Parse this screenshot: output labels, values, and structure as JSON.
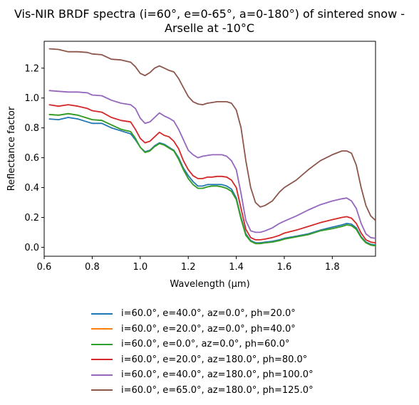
{
  "chart_data": {
    "type": "line",
    "title": "Vis-NIR BRDF spectra (i=60°, e=0-65°, a=0-180°) of sintered snow - Arselle at -10°C",
    "title_lines": [
      "Vis-NIR BRDF spectra (i=60°, e=0-65°, a=0-180°) of sintered snow -",
      "Arselle at -10°C"
    ],
    "xlabel": "Wavelength (μm)",
    "ylabel": "Reflectance factor",
    "xlim": [
      0.6,
      1.98
    ],
    "ylim": [
      -0.06,
      1.38
    ],
    "xticks": [
      0.6,
      0.8,
      1.0,
      1.2,
      1.4,
      1.6,
      1.8
    ],
    "xtick_labels": [
      "0.6",
      "0.8",
      "1.0",
      "1.2",
      "1.4",
      "1.6",
      "1.8"
    ],
    "yticks": [
      0.0,
      0.2,
      0.4,
      0.6,
      0.8,
      1.0,
      1.2
    ],
    "ytick_labels": [
      "0.0",
      "0.2",
      "0.4",
      "0.6",
      "0.8",
      "1.0",
      "1.2"
    ],
    "grid": false,
    "legend_position": "below",
    "x": [
      0.62,
      0.66,
      0.7,
      0.74,
      0.78,
      0.8,
      0.84,
      0.88,
      0.92,
      0.96,
      0.98,
      1.0,
      1.02,
      1.04,
      1.06,
      1.08,
      1.1,
      1.12,
      1.14,
      1.16,
      1.18,
      1.2,
      1.22,
      1.24,
      1.26,
      1.28,
      1.3,
      1.32,
      1.34,
      1.36,
      1.38,
      1.4,
      1.42,
      1.44,
      1.46,
      1.48,
      1.5,
      1.52,
      1.55,
      1.58,
      1.6,
      1.65,
      1.7,
      1.75,
      1.8,
      1.84,
      1.86,
      1.88,
      1.9,
      1.92,
      1.94,
      1.96,
      1.98
    ],
    "series": [
      {
        "name": "i=60.0°, e=40.0°, az=0.0°, ph=20.0°",
        "color": "#1f77b4",
        "values": [
          0.86,
          0.855,
          0.87,
          0.86,
          0.84,
          0.83,
          0.83,
          0.8,
          0.78,
          0.76,
          0.72,
          0.67,
          0.64,
          0.65,
          0.68,
          0.7,
          0.69,
          0.67,
          0.65,
          0.6,
          0.53,
          0.48,
          0.44,
          0.41,
          0.41,
          0.42,
          0.42,
          0.42,
          0.42,
          0.41,
          0.39,
          0.33,
          0.2,
          0.09,
          0.045,
          0.03,
          0.03,
          0.035,
          0.04,
          0.05,
          0.06,
          0.075,
          0.09,
          0.115,
          0.135,
          0.15,
          0.16,
          0.155,
          0.13,
          0.07,
          0.035,
          0.02,
          0.015
        ]
      },
      {
        "name": "i=60.0°, e=20.0°, az=0.0°, ph=40.0°",
        "color": "#ff7f0e",
        "values": [
          0.89,
          0.885,
          0.895,
          0.885,
          0.865,
          0.855,
          0.85,
          0.82,
          0.79,
          0.775,
          0.73,
          0.67,
          0.635,
          0.645,
          0.675,
          0.695,
          0.685,
          0.665,
          0.645,
          0.59,
          0.52,
          0.46,
          0.42,
          0.395,
          0.395,
          0.405,
          0.41,
          0.41,
          0.405,
          0.395,
          0.375,
          0.32,
          0.19,
          0.08,
          0.04,
          0.025,
          0.025,
          0.03,
          0.035,
          0.045,
          0.055,
          0.07,
          0.085,
          0.11,
          0.125,
          0.14,
          0.15,
          0.145,
          0.12,
          0.065,
          0.03,
          0.015,
          0.01
        ]
      },
      {
        "name": "i=60.0°, e=0.0°, az=0.0°, ph=60.0°",
        "color": "#2ca02c",
        "values": [
          0.89,
          0.885,
          0.895,
          0.885,
          0.865,
          0.855,
          0.85,
          0.82,
          0.79,
          0.775,
          0.73,
          0.67,
          0.635,
          0.645,
          0.675,
          0.695,
          0.685,
          0.665,
          0.645,
          0.59,
          0.52,
          0.46,
          0.42,
          0.395,
          0.395,
          0.405,
          0.41,
          0.41,
          0.405,
          0.395,
          0.375,
          0.32,
          0.19,
          0.08,
          0.04,
          0.025,
          0.025,
          0.03,
          0.035,
          0.045,
          0.055,
          0.07,
          0.085,
          0.11,
          0.125,
          0.14,
          0.15,
          0.145,
          0.12,
          0.065,
          0.03,
          0.015,
          0.01
        ]
      },
      {
        "name": "i=60.0°, e=20.0°, az=180.0°, ph=80.0°",
        "color": "#d62728",
        "values": [
          0.955,
          0.945,
          0.955,
          0.945,
          0.93,
          0.915,
          0.905,
          0.87,
          0.85,
          0.84,
          0.79,
          0.73,
          0.7,
          0.71,
          0.74,
          0.77,
          0.75,
          0.74,
          0.71,
          0.66,
          0.58,
          0.52,
          0.48,
          0.46,
          0.46,
          0.47,
          0.47,
          0.475,
          0.475,
          0.47,
          0.45,
          0.4,
          0.26,
          0.12,
          0.065,
          0.05,
          0.05,
          0.055,
          0.065,
          0.08,
          0.095,
          0.115,
          0.14,
          0.165,
          0.185,
          0.2,
          0.205,
          0.195,
          0.16,
          0.095,
          0.05,
          0.035,
          0.03
        ]
      },
      {
        "name": "i=60.0°, e=40.0°, az=180.0°, ph=100.0°",
        "color": "#9467bd",
        "values": [
          1.05,
          1.045,
          1.04,
          1.04,
          1.035,
          1.02,
          1.015,
          0.985,
          0.965,
          0.955,
          0.93,
          0.865,
          0.83,
          0.84,
          0.87,
          0.9,
          0.88,
          0.865,
          0.845,
          0.79,
          0.72,
          0.65,
          0.62,
          0.6,
          0.61,
          0.615,
          0.62,
          0.62,
          0.62,
          0.61,
          0.58,
          0.52,
          0.36,
          0.18,
          0.11,
          0.1,
          0.1,
          0.11,
          0.13,
          0.16,
          0.175,
          0.21,
          0.25,
          0.285,
          0.31,
          0.325,
          0.33,
          0.31,
          0.26,
          0.16,
          0.09,
          0.065,
          0.06
        ]
      },
      {
        "name": "i=60.0°, e=65.0°, az=180.0°, ph=125.0°",
        "color": "#8c564b",
        "values": [
          1.33,
          1.325,
          1.31,
          1.31,
          1.305,
          1.295,
          1.29,
          1.26,
          1.255,
          1.24,
          1.21,
          1.165,
          1.15,
          1.17,
          1.2,
          1.215,
          1.2,
          1.185,
          1.175,
          1.13,
          1.07,
          1.01,
          0.975,
          0.96,
          0.955,
          0.965,
          0.97,
          0.975,
          0.975,
          0.975,
          0.965,
          0.92,
          0.8,
          0.58,
          0.4,
          0.3,
          0.27,
          0.28,
          0.31,
          0.37,
          0.4,
          0.45,
          0.52,
          0.58,
          0.62,
          0.645,
          0.645,
          0.63,
          0.55,
          0.4,
          0.28,
          0.21,
          0.18
        ]
      }
    ]
  }
}
